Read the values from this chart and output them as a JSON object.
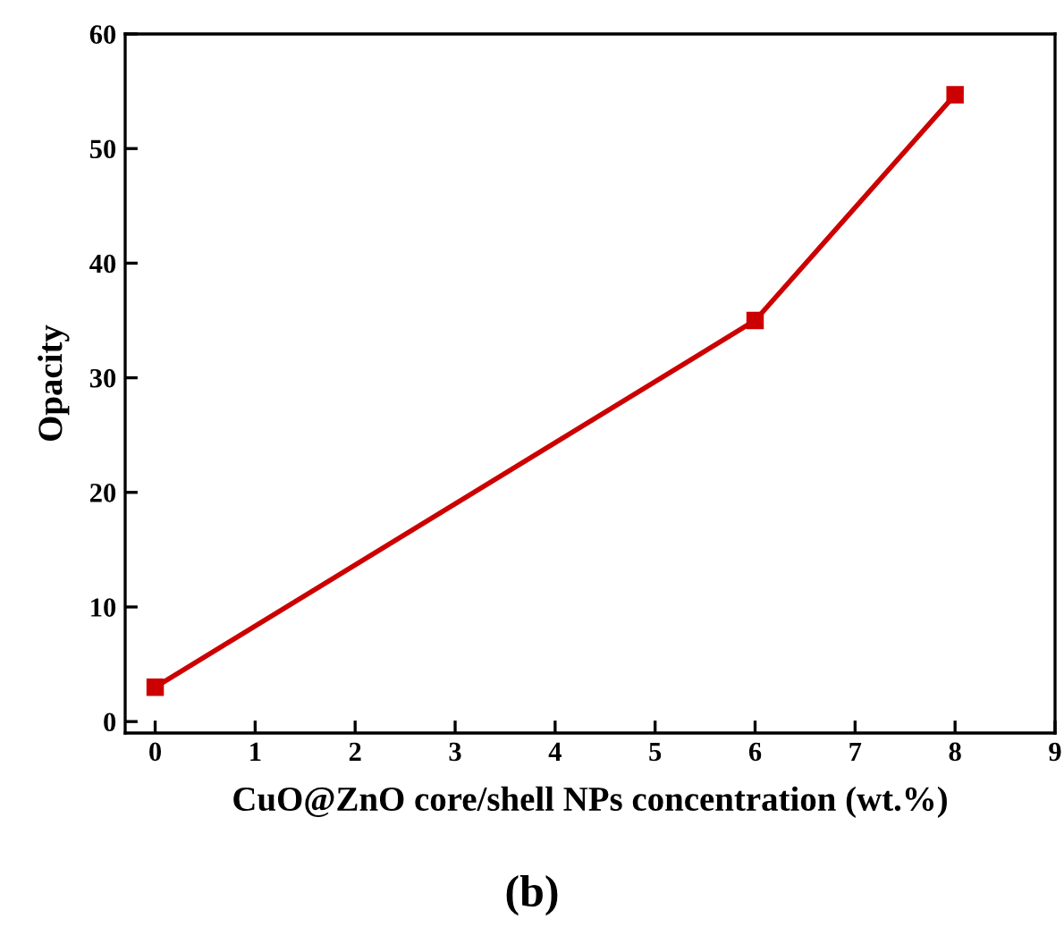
{
  "chart_data": {
    "type": "line",
    "xlabel": "CuO@ZnO core/shell NPs concentration (wt.%)",
    "ylabel": "Opacity",
    "x": [
      0,
      6,
      8
    ],
    "series": [
      {
        "color": "#cc0000",
        "values": [
          3,
          35,
          54.7
        ]
      }
    ],
    "xlim": [
      -0.3,
      9
    ],
    "xticks": [
      0,
      1,
      2,
      3,
      4,
      5,
      6,
      7,
      8,
      9
    ],
    "ylim": [
      -1,
      60
    ],
    "yticks": [
      0,
      10,
      20,
      30,
      40,
      50,
      60
    ],
    "marker": "square",
    "line_style": "solid",
    "grid": false,
    "legend": false,
    "annotations": [
      "(b)"
    ]
  }
}
